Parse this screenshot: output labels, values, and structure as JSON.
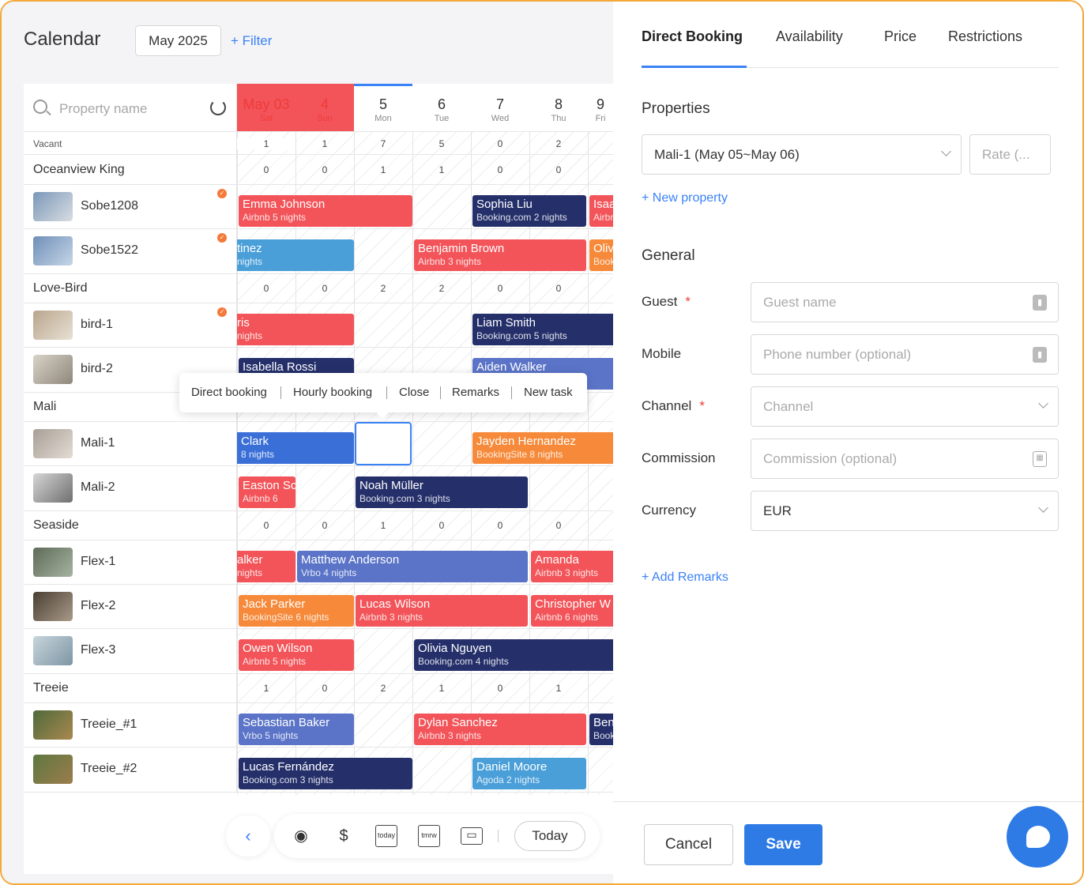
{
  "header": {
    "title": "Calendar",
    "month": "May 2025",
    "filter": "+ Filter"
  },
  "search": {
    "placeholder": "Property name"
  },
  "days": [
    {
      "d": "May 03",
      "w": "Sat"
    },
    {
      "d": "4",
      "w": "Sun"
    },
    {
      "d": "5",
      "w": "Mon"
    },
    {
      "d": "6",
      "w": "Tue"
    },
    {
      "d": "7",
      "w": "Wed"
    },
    {
      "d": "8",
      "w": "Thu"
    },
    {
      "d": "9",
      "w": "Fri"
    }
  ],
  "vacant": {
    "label": "Vacant",
    "values": [
      "1",
      "1",
      "7",
      "5",
      "0",
      "2"
    ]
  },
  "groups": {
    "g1": {
      "name": "Oceanview King",
      "values": [
        "0",
        "0",
        "1",
        "1",
        "0",
        "0"
      ]
    },
    "g2": {
      "name": "Love-Bird",
      "values": [
        "0",
        "0",
        "2",
        "2",
        "0",
        "0"
      ]
    },
    "g3": {
      "name": "Mali"
    },
    "g4": {
      "name": "Seaside",
      "values": [
        "0",
        "0",
        "1",
        "0",
        "0",
        "0"
      ]
    },
    "g5": {
      "name": "Treeie",
      "values": [
        "1",
        "0",
        "2",
        "1",
        "0",
        "1"
      ]
    }
  },
  "properties": [
    "Sobe1208",
    "Sobe1522",
    "bird-1",
    "bird-2",
    "Mali-1",
    "Mali-2",
    "Flex-1",
    "Flex-2",
    "Flex-3",
    "Treeie_#1",
    "Treeie_#2"
  ],
  "bookings": [
    {
      "g": "Emma Johnson",
      "s": "Airbnb    5 nights"
    },
    {
      "g": "Sophia Liu",
      "s": "Booking.com    2 nights"
    },
    {
      "g": "Isaac",
      "s": "Airbnb"
    },
    {
      "g": "tinez",
      "s": "nights"
    },
    {
      "g": "Benjamin Brown",
      "s": "Airbnb    3 nights"
    },
    {
      "g": "Oliv",
      "s": "Book"
    },
    {
      "g": "ris",
      "s": "nights"
    },
    {
      "g": "Liam Smith",
      "s": "Booking.com    5 nights"
    },
    {
      "g": "Isabella Rossi",
      "s": ""
    },
    {
      "g": "Aiden Walker",
      "s": ""
    },
    {
      "g": "Clark",
      "s": "8 nights"
    },
    {
      "g": "Jayden Hernandez",
      "s": "BookingSite    8 nights"
    },
    {
      "g": "Easton Sc",
      "s": "Airbnb    6"
    },
    {
      "g": "Noah Müller",
      "s": "Booking.com    3 nights"
    },
    {
      "g": "alker",
      "s": "nights"
    },
    {
      "g": "Matthew Anderson",
      "s": "Vrbo    4 nights"
    },
    {
      "g": "Amanda",
      "s": "Airbnb    3 nights"
    },
    {
      "g": "Jack Parker",
      "s": "BookingSite    6 nights"
    },
    {
      "g": "Lucas Wilson",
      "s": "Airbnb    3 nights"
    },
    {
      "g": "Christopher W",
      "s": "Airbnb    6 nights"
    },
    {
      "g": "Owen Wilson",
      "s": "Airbnb    5 nights"
    },
    {
      "g": "Olivia Nguyen",
      "s": "Booking.com    4 nights"
    },
    {
      "g": "Sebastian Baker",
      "s": "Vrbo    5 nights"
    },
    {
      "g": "Dylan Sanchez",
      "s": "Airbnb    3 nights"
    },
    {
      "g": "Ben",
      "s": "Book"
    },
    {
      "g": "Lucas Fernández",
      "s": "Booking.com    3 nights"
    },
    {
      "g": "Daniel Moore",
      "s": "Agoda    2 nights"
    }
  ],
  "popup": {
    "items": [
      "Direct booking",
      "Hourly booking",
      "Close",
      "Remarks",
      "New task"
    ]
  },
  "toolbar": {
    "today": "Today",
    "icons": [
      "eye-icon",
      "money-icon",
      "today-icon",
      "tomorrow-icon",
      "archive-icon"
    ]
  },
  "panel": {
    "tabs": [
      "Direct Booking",
      "Availability",
      "Price",
      "Restrictions"
    ],
    "properties_title": "Properties",
    "property_value": "Mali-1  (May 05~May 06)",
    "rate_placeholder": "Rate (...",
    "new_property": "+ New property",
    "general_title": "General",
    "guest_label": "Guest",
    "guest_placeholder": "Guest name",
    "mobile_label": "Mobile",
    "mobile_placeholder": "Phone number (optional)",
    "channel_label": "Channel",
    "channel_placeholder": "Channel",
    "commission_label": "Commission",
    "commission_placeholder": "Commission (optional)",
    "currency_label": "Currency",
    "currency_value": "EUR",
    "add_remarks": "+ Add Remarks",
    "cancel": "Cancel",
    "save": "Save"
  },
  "colors": {
    "accent": "#3b82f6",
    "frame": "#f4a83a",
    "airbnb": "#f25459",
    "booking": "#25306b",
    "bookingsite": "#f68a3a",
    "vrbo": "#5b74c8",
    "agoda": "#4a9fd8"
  }
}
